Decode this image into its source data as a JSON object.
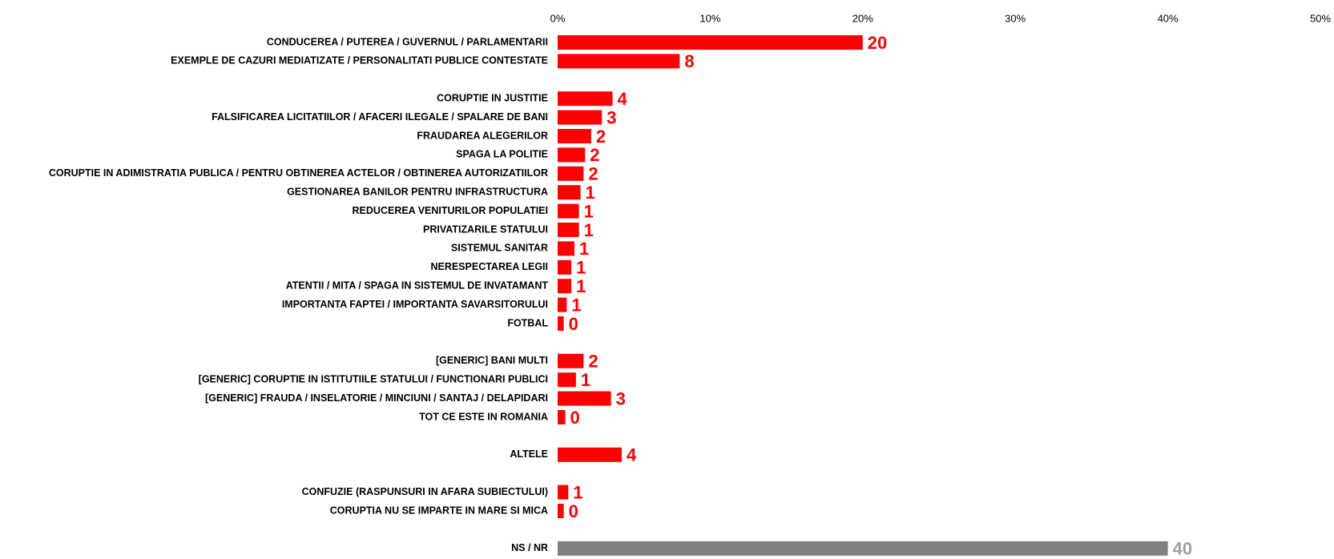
{
  "chart_data": {
    "type": "bar",
    "orientation": "horizontal",
    "x_ticks": [
      "0%",
      "10%",
      "20%",
      "30%",
      "40%",
      "50%"
    ],
    "xlim": [
      0,
      50
    ],
    "grid": false,
    "colors": {
      "bar": "#ff0000",
      "label": "#ff0000",
      "nsnr_bar": "#808080",
      "nsnr_label": "#a0a0a0"
    },
    "groups": [
      {
        "items": [
          {
            "category": "CONDUCEREA / PUTEREA / GUVERNUL / PARLAMENTARII",
            "value": 20,
            "label": "20"
          },
          {
            "category": "EXEMPLE DE CAZURI MEDIATIZATE / PERSONALITATI PUBLICE CONTESTATE",
            "value": 8,
            "label": "8"
          }
        ]
      },
      {
        "items": [
          {
            "category": "CORUPTIE IN JUSTITIE",
            "value": 3.6,
            "label": "4"
          },
          {
            "category": "FALSIFICAREA LICITATIILOR / AFACERI ILEGALE / SPALARE DE BANI",
            "value": 2.9,
            "label": "3"
          },
          {
            "category": "FRAUDAREA ALEGERILOR",
            "value": 2.2,
            "label": "2"
          },
          {
            "category": "SPAGA LA POLITIE",
            "value": 1.8,
            "label": "2"
          },
          {
            "category": "CORUPTIE IN ADIMISTRATIA PUBLICA / PENTRU OBTINEREA ACTELOR / OBTINEREA AUTORIZATIILOR",
            "value": 1.7,
            "label": "2"
          },
          {
            "category": "GESTIONAREA BANILOR PENTRU INFRASTRUCTURA",
            "value": 1.5,
            "label": "1"
          },
          {
            "category": "REDUCEREA VENITURILOR POPULATIEI",
            "value": 1.4,
            "label": "1"
          },
          {
            "category": "PRIVATIZARILE STATULUI",
            "value": 1.4,
            "label": "1"
          },
          {
            "category": "SISTEMUL SANITAR",
            "value": 1.1,
            "label": "1"
          },
          {
            "category": "NERESPECTAREA LEGII",
            "value": 0.9,
            "label": "1"
          },
          {
            "category": "ATENTII / MITA / SPAGA IN SISTEMUL DE INVATAMANT",
            "value": 0.9,
            "label": "1"
          },
          {
            "category": "IMPORTANTA FAPTEI / IMPORTANTA SAVARSITORULUI",
            "value": 0.6,
            "label": "1"
          },
          {
            "category": "FOTBAL",
            "value": 0.4,
            "label": "0"
          }
        ]
      },
      {
        "items": [
          {
            "category": "[GENERIC] BANI MULTI",
            "value": 1.7,
            "label": "2"
          },
          {
            "category": "[GENERIC] CORUPTIE IN ISTITUTIILE STATULUI / FUNCTIONARI PUBLICI",
            "value": 1.2,
            "label": "1"
          },
          {
            "category": "[GENERIC] FRAUDA / INSELATORIE / MINCIUNI / SANTAJ / DELAPIDARI",
            "value": 3.5,
            "label": "3"
          },
          {
            "category": "TOT CE ESTE IN ROMANIA",
            "value": 0.5,
            "label": "0"
          }
        ]
      },
      {
        "items": [
          {
            "category": "ALTELE",
            "value": 4.2,
            "label": "4"
          }
        ]
      },
      {
        "items": [
          {
            "category": "CONFUZIE (RASPUNSURI IN AFARA SUBIECTULUI)",
            "value": 0.7,
            "label": "1"
          },
          {
            "category": "CORUPTIA NU SE IMPARTE IN MARE SI MICA",
            "value": 0.4,
            "label": "0"
          }
        ]
      },
      {
        "items": [
          {
            "category": "NS / NR",
            "value": 40,
            "label": "40",
            "style": "nsnr"
          }
        ]
      }
    ]
  }
}
